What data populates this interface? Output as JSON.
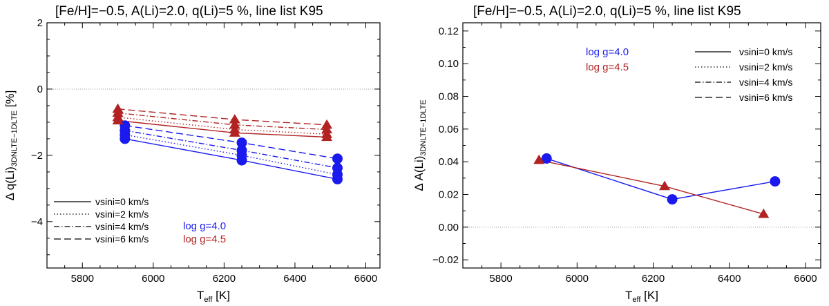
{
  "colors": {
    "logg40": "#1a1aee",
    "logg45": "#b22222",
    "zeroline": "#999999"
  },
  "charts": [
    {
      "type": "line",
      "title": "[Fe/H]=−0.5, A(Li)=2.0, q(Li)=5 %, line list K95",
      "xlabel_main": "T",
      "xlabel_sub": "eff",
      "xlabel_tail": " [K]",
      "ylabel_main": "Δ q(Li)",
      "ylabel_sub": "3DNLTE−1DLTE",
      "ylabel_tail": " [%]",
      "xlim": [
        5700,
        6640
      ],
      "ylim": [
        -5.4,
        2
      ],
      "xticks": [
        5800,
        6000,
        6200,
        6400,
        6600
      ],
      "yticks": [
        -4,
        -2,
        0,
        2
      ],
      "xtick_labels": [
        "5800",
        "6000",
        "6200",
        "6400",
        "6600"
      ],
      "ytick_labels": [
        "−4",
        "−2",
        "0",
        "2"
      ],
      "zero_line": 0,
      "series": [
        {
          "name": "log g=4.0, vsini=0 km/s",
          "group": "logg40",
          "vsini": 0,
          "marker": "circle",
          "x": [
            5920,
            6250,
            6520
          ],
          "y": [
            -1.5,
            -2.15,
            -2.72
          ]
        },
        {
          "name": "log g=4.0, vsini=2 km/s",
          "group": "logg40",
          "vsini": 2,
          "marker": "circle",
          "x": [
            5920,
            6250,
            6520
          ],
          "y": [
            -1.38,
            -2.0,
            -2.58
          ]
        },
        {
          "name": "log g=4.0, vsini=4 km/s",
          "group": "logg40",
          "vsini": 4,
          "marker": "circle",
          "x": [
            5920,
            6250,
            6520
          ],
          "y": [
            -1.25,
            -1.85,
            -2.38
          ]
        },
        {
          "name": "log g=4.0, vsini=6 km/s",
          "group": "logg40",
          "vsini": 6,
          "marker": "circle",
          "x": [
            5920,
            6250,
            6520
          ],
          "y": [
            -1.1,
            -1.62,
            -2.1
          ]
        },
        {
          "name": "log g=4.5, vsini=0 km/s",
          "group": "logg45",
          "vsini": 0,
          "marker": "triangle",
          "x": [
            5900,
            6230,
            6490
          ],
          "y": [
            -0.95,
            -1.32,
            -1.45
          ]
        },
        {
          "name": "log g=4.5, vsini=2 km/s",
          "group": "logg45",
          "vsini": 2,
          "marker": "triangle",
          "x": [
            5900,
            6230,
            6490
          ],
          "y": [
            -0.85,
            -1.22,
            -1.36
          ]
        },
        {
          "name": "log g=4.5, vsini=4 km/s",
          "group": "logg45",
          "vsini": 4,
          "marker": "triangle",
          "x": [
            5900,
            6230,
            6490
          ],
          "y": [
            -0.72,
            -1.08,
            -1.22
          ]
        },
        {
          "name": "log g=4.5, vsini=6 km/s",
          "group": "logg45",
          "vsini": 6,
          "marker": "triangle",
          "x": [
            5900,
            6230,
            6490
          ],
          "y": [
            -0.6,
            -0.92,
            -1.08
          ]
        }
      ],
      "legend_styles": [
        {
          "label": "vsini=0 km/s",
          "vsini": 0
        },
        {
          "label": "vsini=2 km/s",
          "vsini": 2
        },
        {
          "label": "vsini=4 km/s",
          "vsini": 4
        },
        {
          "label": "vsini=6 km/s",
          "vsini": 6
        }
      ],
      "legend_position": "bottom-left",
      "group_labels": [
        {
          "label": "log g=4.0",
          "group": "logg40"
        },
        {
          "label": "log g=4.5",
          "group": "logg45"
        }
      ],
      "group_labels_position": "bottom-center"
    },
    {
      "type": "line",
      "title": "[Fe/H]=−0.5, A(Li)=2.0, q(Li)=5 %, line list K95",
      "xlabel_main": "T",
      "xlabel_sub": "eff",
      "xlabel_tail": " [K]",
      "ylabel_main": "Δ A(Li)",
      "ylabel_sub": "3DNLTE−1DLTE",
      "ylabel_tail": "",
      "xlim": [
        5700,
        6640
      ],
      "ylim": [
        -0.025,
        0.125
      ],
      "xticks": [
        5800,
        6000,
        6200,
        6400,
        6600
      ],
      "yticks": [
        -0.02,
        0.0,
        0.02,
        0.04,
        0.06,
        0.08,
        0.1,
        0.12
      ],
      "xtick_labels": [
        "5800",
        "6000",
        "6200",
        "6400",
        "6600"
      ],
      "ytick_labels": [
        "−0.02",
        "0.00",
        "0.02",
        "0.04",
        "0.06",
        "0.08",
        "0.10",
        "0.12"
      ],
      "zero_line": 0,
      "series": [
        {
          "name": "log g=4.0",
          "group": "logg40",
          "vsini": 0,
          "marker": "circle",
          "x": [
            5920,
            6250,
            6520
          ],
          "y": [
            0.042,
            0.017,
            0.028
          ]
        },
        {
          "name": "log g=4.5",
          "group": "logg45",
          "vsini": 0,
          "marker": "triangle",
          "x": [
            5900,
            6230,
            6490
          ],
          "y": [
            0.041,
            0.025,
            0.008
          ]
        }
      ],
      "legend_styles": [
        {
          "label": "vsini=0  km/s",
          "vsini": 0
        },
        {
          "label": "vsini=2  km/s",
          "vsini": 2
        },
        {
          "label": "vsini=4  km/s",
          "vsini": 4
        },
        {
          "label": "vsini=6  km/s",
          "vsini": 6
        }
      ],
      "legend_position": "top-right",
      "group_labels": [
        {
          "label": "log g=4.0",
          "group": "logg40"
        },
        {
          "label": "log g=4.5",
          "group": "logg45"
        }
      ],
      "group_labels_position": "top-center"
    }
  ]
}
